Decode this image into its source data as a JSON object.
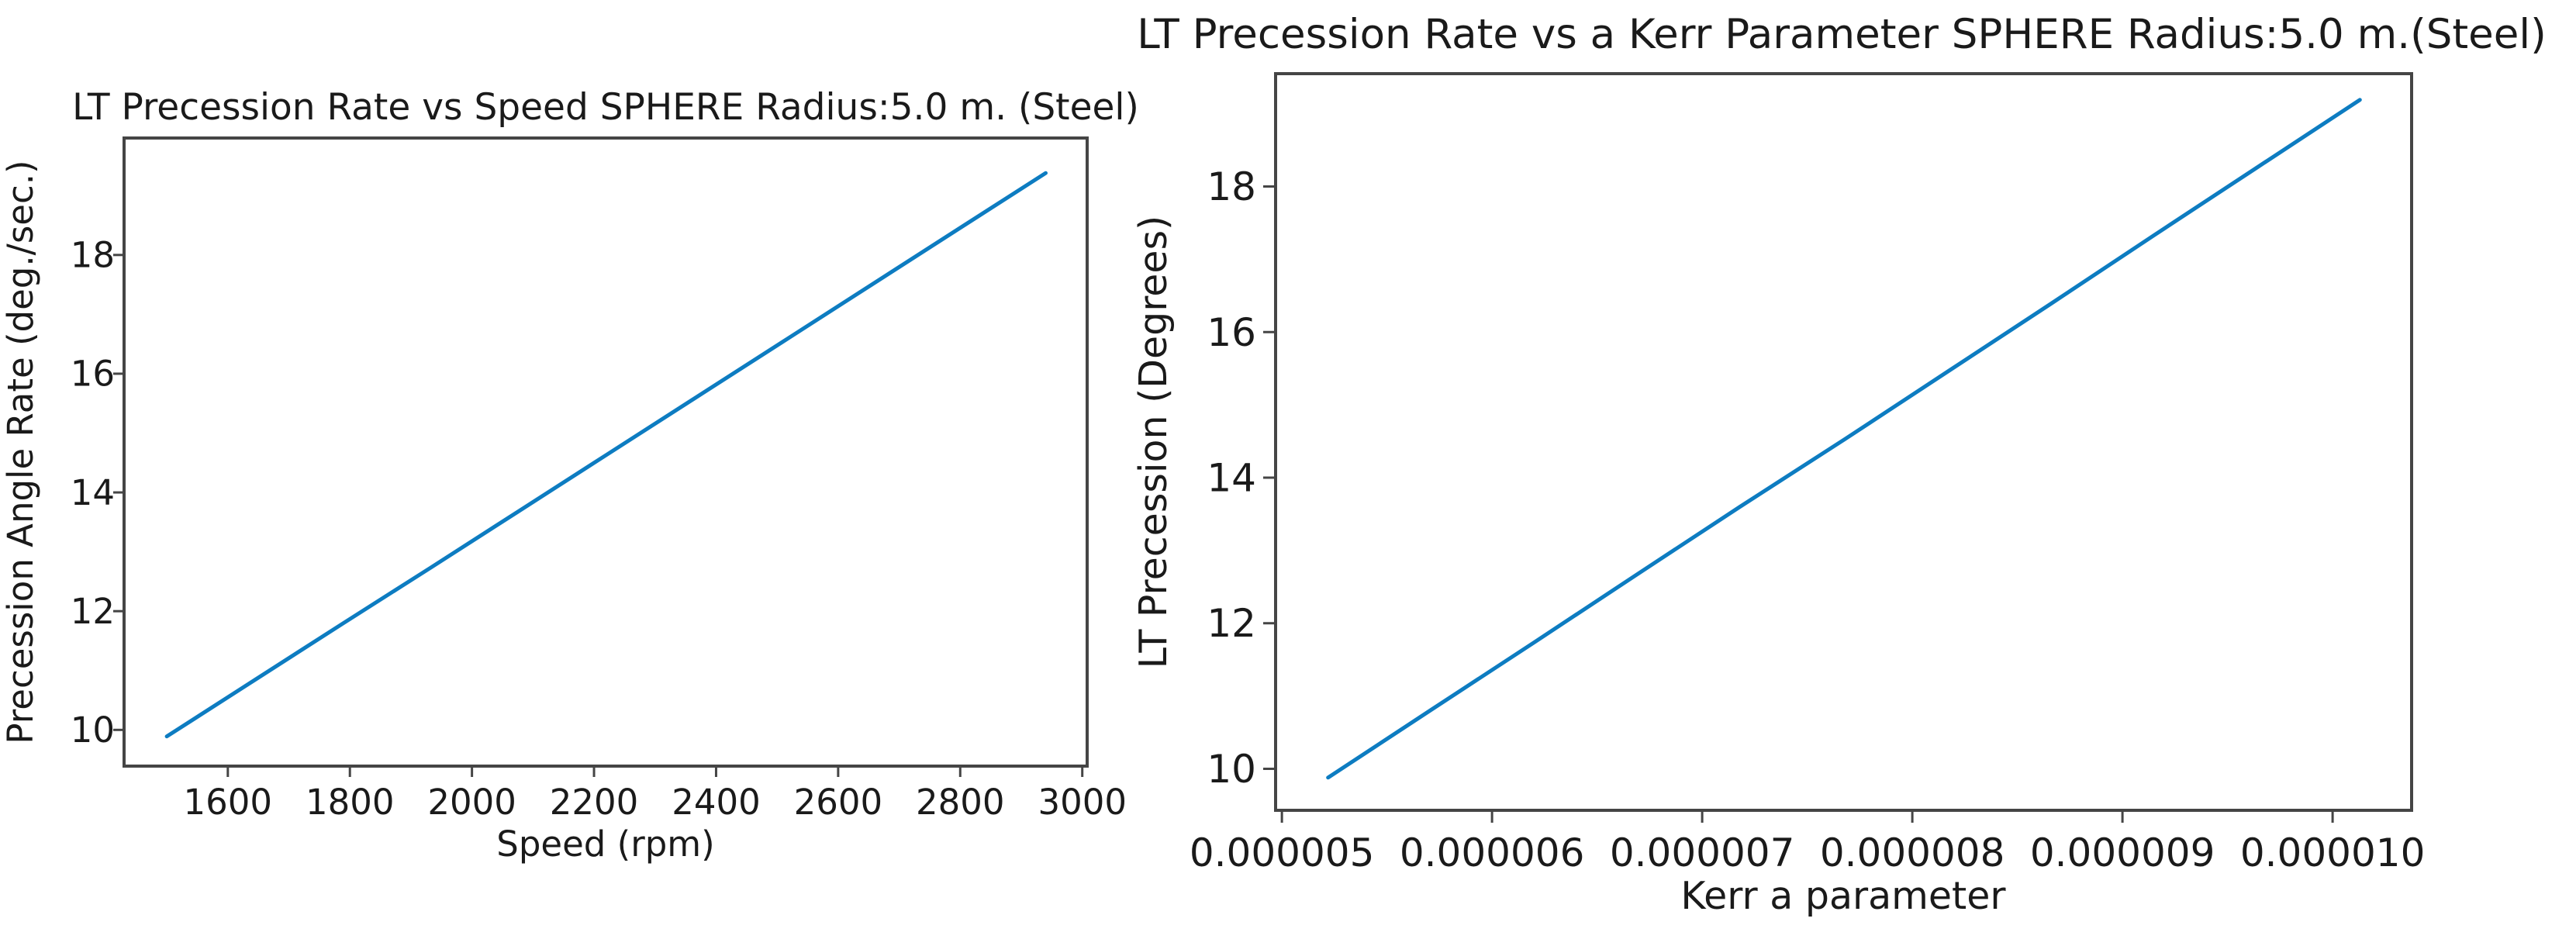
{
  "page": {
    "background": "#ffffff"
  },
  "colors": {
    "line_blue": "#0d7cc1",
    "text": "#1a1a1a",
    "spine": "#454545"
  },
  "chart_data": [
    {
      "type": "line",
      "title": "LT Precession Rate vs Speed SPHERE Radius:5.0 m. (Steel)",
      "xlabel": "Speed (rpm)",
      "ylabel": "Precession Angle Rate (deg./sec.)",
      "x": [
        1500,
        1644,
        1788,
        1932,
        2076,
        2220,
        2364,
        2508,
        2652,
        2796,
        2940
      ],
      "y": [
        9.89,
        10.84,
        11.79,
        12.73,
        13.68,
        14.63,
        15.58,
        16.53,
        17.48,
        18.43,
        19.38
      ],
      "xlim": [
        1430,
        3008
      ],
      "ylim": [
        9.39,
        19.97
      ],
      "xticks": [
        1600,
        1800,
        2000,
        2200,
        2400,
        2600,
        2800,
        3000
      ],
      "xtick_labels": [
        "1600",
        "1800",
        "2000",
        "2200",
        "2400",
        "2600",
        "2800",
        "3000"
      ],
      "yticks": [
        10,
        12,
        14,
        16,
        18
      ],
      "ytick_labels": [
        "10",
        "12",
        "14",
        "16",
        "18"
      ],
      "line_color": "#0d7cc1",
      "grid": false,
      "legend": "none"
    },
    {
      "type": "line",
      "title": "LT Precession Rate vs a Kerr Parameter SPHERE Radius:5.0 m.(Steel)",
      "xlabel": "Kerr a parameter",
      "ylabel": "LT Precession (Degrees)",
      "x": [
        5.22e-06,
        5.71e-06,
        6.202e-06,
        6.69e-06,
        7.18e-06,
        7.68e-06,
        8.17e-06,
        8.66e-06,
        9.15e-06,
        9.64e-06,
        1.013e-05
      ],
      "y": [
        9.88,
        10.81,
        11.74,
        12.67,
        13.6,
        14.53,
        15.46,
        16.39,
        17.33,
        18.26,
        19.19
      ],
      "xlim": [
        4.97e-06,
        1.0376e-05
      ],
      "ylim": [
        9.43,
        19.55
      ],
      "xticks": [
        5e-06,
        6e-06,
        7e-06,
        8e-06,
        9e-06,
        1e-05
      ],
      "xtick_labels": [
        "0.000005",
        "0.000006",
        "0.000007",
        "0.000008",
        "0.000009",
        "0.000010"
      ],
      "yticks": [
        10,
        12,
        14,
        16,
        18
      ],
      "ytick_labels": [
        "10",
        "12",
        "14",
        "16",
        "18"
      ],
      "line_color": "#0d7cc1",
      "grid": false,
      "legend": "none"
    }
  ]
}
